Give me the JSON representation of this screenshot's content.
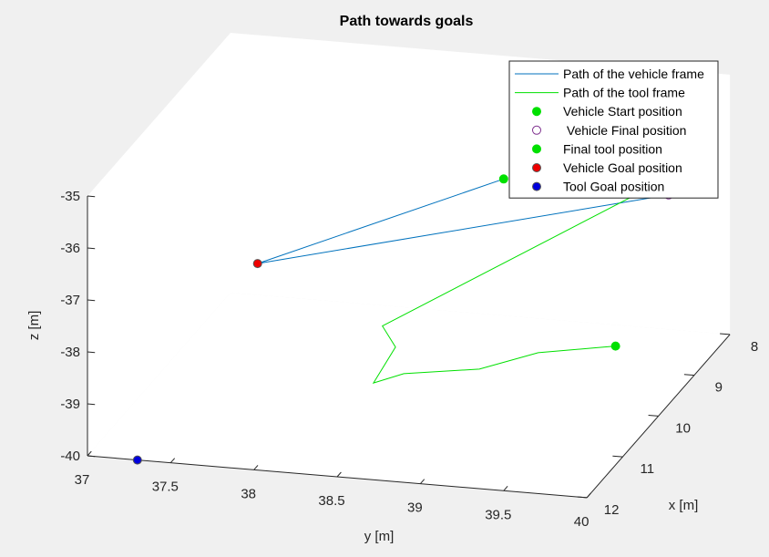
{
  "chart_data": {
    "type": "line",
    "projection": "3d",
    "title": "Path towards goals",
    "xlabel": "x [m]",
    "ylabel": "y [m]",
    "zlabel": "z [m]",
    "xlim": [
      8,
      12
    ],
    "ylim": [
      37,
      40
    ],
    "zlim": [
      -40,
      -35
    ],
    "x_ticks": [
      "8",
      "9",
      "10",
      "11",
      "12"
    ],
    "y_ticks": [
      "37",
      "37.5",
      "38",
      "38.5",
      "39",
      "39.5",
      "40"
    ],
    "z_ticks": [
      "-35",
      "-36",
      "-37",
      "-38",
      "-39",
      "-40"
    ],
    "grid": false,
    "legend_position": "top-right",
    "series": [
      {
        "name": "Path of the vehicle frame",
        "kind": "line",
        "color": "#0072BD",
        "points": [
          {
            "x": 12.0,
            "y": 39.5,
            "z": -34.0
          },
          {
            "x": 11.2,
            "y": 37.85,
            "z": -36.7
          },
          {
            "x": 8.55,
            "y": 39.75,
            "z": -36.95
          }
        ]
      },
      {
        "name": "Path of the tool frame",
        "kind": "line",
        "color": "#00E000",
        "points": [
          {
            "x": 10.3,
            "y": 40.2,
            "z": -35.0
          },
          {
            "x": 11.2,
            "y": 38.6,
            "z": -37.7
          },
          {
            "x": 11.3,
            "y": 38.7,
            "z": -38.0
          },
          {
            "x": 11.45,
            "y": 38.6,
            "z": -38.6
          },
          {
            "x": 11.3,
            "y": 38.75,
            "z": -38.5
          },
          {
            "x": 11.05,
            "y": 39.15,
            "z": -38.5
          },
          {
            "x": 10.8,
            "y": 39.45,
            "z": -38.3
          },
          {
            "x": 10.5,
            "y": 39.85,
            "z": -38.3
          }
        ]
      },
      {
        "name": "Vehicle Start position",
        "kind": "marker",
        "fill": "#00E000",
        "edge": "#00E000",
        "points": [
          {
            "x": 12.0,
            "y": 39.5,
            "z": -34.0
          }
        ]
      },
      {
        "name": " Vehicle Final position",
        "kind": "marker",
        "fill": "#ffffff",
        "edge": "#7E2F8E",
        "points": [
          {
            "x": 8.55,
            "y": 39.75,
            "z": -36.95
          }
        ]
      },
      {
        "name": "Final tool position",
        "kind": "marker",
        "fill": "#00E000",
        "edge": "#00E000",
        "points": [
          {
            "x": 10.5,
            "y": 39.85,
            "z": -38.3
          }
        ]
      },
      {
        "name": "Vehicle Goal position",
        "kind": "marker",
        "fill": "#ee0000",
        "edge": "#555555",
        "points": [
          {
            "x": 11.2,
            "y": 37.85,
            "z": -36.7
          }
        ]
      },
      {
        "name": "Tool Goal position",
        "kind": "marker",
        "fill": "#0000dd",
        "edge": "#555555",
        "points": [
          {
            "x": 12.0,
            "y": 37.3,
            "z": -40.0
          }
        ]
      }
    ]
  }
}
